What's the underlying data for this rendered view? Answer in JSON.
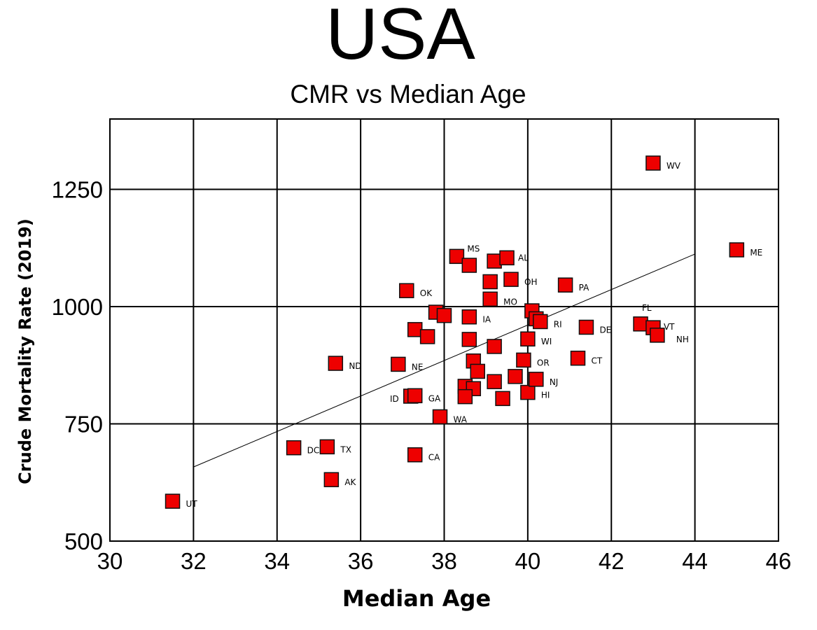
{
  "chart_data": {
    "type": "scatter",
    "title": "USA",
    "subtitle": "CMR vs Median Age",
    "xlabel": "Median Age",
    "ylabel": "Crude Mortality Rate (2019)",
    "xlim": [
      30,
      46
    ],
    "ylim": [
      500,
      1400
    ],
    "x_ticks": [
      30,
      32,
      34,
      36,
      38,
      40,
      42,
      44,
      46
    ],
    "y_ticks": [
      500,
      750,
      1000,
      1250
    ],
    "grid": true,
    "marker_color": "#ee0000",
    "marker_edge_color": "#111111",
    "trendline": {
      "x": [
        32,
        44
      ],
      "y": [
        658,
        1112
      ]
    },
    "points": [
      {
        "label": "UT",
        "x": 31.5,
        "y": 585
      },
      {
        "label": "AK",
        "x": 35.3,
        "y": 631
      },
      {
        "label": "DC",
        "x": 34.4,
        "y": 699
      },
      {
        "label": "TX",
        "x": 35.2,
        "y": 701
      },
      {
        "label": "CA",
        "x": 37.3,
        "y": 684
      },
      {
        "label": "ND",
        "x": 35.4,
        "y": 879
      },
      {
        "label": "NE",
        "x": 36.9,
        "y": 877
      },
      {
        "label": "OK",
        "x": 37.1,
        "y": 1034
      },
      {
        "label": "ID",
        "x": 37.2,
        "y": 809
      },
      {
        "label": "GA",
        "x": 37.3,
        "y": 810
      },
      {
        "label": "WA",
        "x": 37.9,
        "y": 765
      },
      {
        "label": "",
        "x": 37.3,
        "y": 951
      },
      {
        "label": "",
        "x": 37.6,
        "y": 936
      },
      {
        "label": "",
        "x": 37.8,
        "y": 988
      },
      {
        "label": "",
        "x": 38.0,
        "y": 981
      },
      {
        "label": "MS",
        "x": 38.3,
        "y": 1107
      },
      {
        "label": "",
        "x": 38.6,
        "y": 1088
      },
      {
        "label": "IA",
        "x": 38.6,
        "y": 978
      },
      {
        "label": "",
        "x": 38.6,
        "y": 930
      },
      {
        "label": "",
        "x": 38.7,
        "y": 884
      },
      {
        "label": "",
        "x": 38.8,
        "y": 862
      },
      {
        "label": "",
        "x": 38.5,
        "y": 830
      },
      {
        "label": "",
        "x": 38.7,
        "y": 825
      },
      {
        "label": "",
        "x": 38.5,
        "y": 808
      },
      {
        "label": "",
        "x": 39.2,
        "y": 1097
      },
      {
        "label": "AL",
        "x": 39.5,
        "y": 1104
      },
      {
        "label": "",
        "x": 39.1,
        "y": 1053
      },
      {
        "label": "OH",
        "x": 39.6,
        "y": 1058
      },
      {
        "label": "MO",
        "x": 39.1,
        "y": 1016
      },
      {
        "label": "",
        "x": 39.2,
        "y": 915
      },
      {
        "label": "",
        "x": 39.2,
        "y": 840
      },
      {
        "label": "",
        "x": 39.4,
        "y": 804
      },
      {
        "label": "",
        "x": 39.7,
        "y": 851
      },
      {
        "label": "OR",
        "x": 39.9,
        "y": 886
      },
      {
        "label": "WI",
        "x": 40.0,
        "y": 931
      },
      {
        "label": "HI",
        "x": 40.0,
        "y": 817
      },
      {
        "label": "NJ",
        "x": 40.2,
        "y": 845
      },
      {
        "label": "",
        "x": 40.1,
        "y": 991
      },
      {
        "label": "",
        "x": 40.2,
        "y": 974
      },
      {
        "label": "RI",
        "x": 40.3,
        "y": 968
      },
      {
        "label": "PA",
        "x": 40.9,
        "y": 1046
      },
      {
        "label": "CT",
        "x": 41.2,
        "y": 890
      },
      {
        "label": "DE",
        "x": 41.4,
        "y": 956
      },
      {
        "label": "FL",
        "x": 42.7,
        "y": 963
      },
      {
        "label": "VT",
        "x": 43.0,
        "y": 955
      },
      {
        "label": "NH",
        "x": 43.1,
        "y": 939
      },
      {
        "label": "WV",
        "x": 43.0,
        "y": 1306
      },
      {
        "label": "ME",
        "x": 45.0,
        "y": 1121
      }
    ]
  }
}
